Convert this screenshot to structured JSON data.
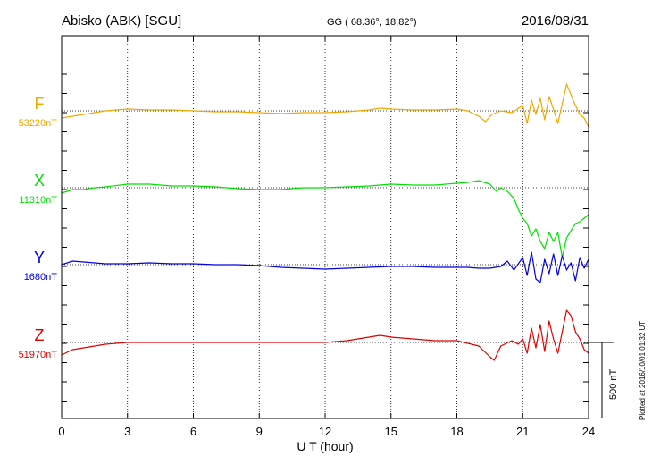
{
  "header": {
    "title": "Abisko (ABK)  [SGU]",
    "coords": "GG ( 68.36°,  18.82°)",
    "date": "2016/08/31"
  },
  "footer": {
    "plotted": "Plotted at 2016/10/01 01:32 UT"
  },
  "chart_data": {
    "type": "line",
    "title": "Abisko (ABK)  [SGU]",
    "xlabel": "U T (hour)",
    "ylabel": "",
    "xlim": [
      0,
      24
    ],
    "xticks": [
      "0",
      "3",
      "6",
      "9",
      "12",
      "15",
      "18",
      "21",
      "24"
    ],
    "grid": "dotted vertical lines every 3 h; dotted baseline per series",
    "scale_bar": "500 nT",
    "series_spacing_nT": 430,
    "series": [
      {
        "name": "F",
        "baseline": "53220nT",
        "color": "#f0a800",
        "x": [
          0,
          0.5,
          1,
          1.5,
          2,
          3,
          4,
          5,
          6,
          7,
          8,
          9,
          10,
          11,
          12,
          13,
          14,
          14.5,
          15,
          16,
          17,
          18,
          18.5,
          19,
          19.3,
          19.6,
          20,
          20.5,
          21,
          21.2,
          21.4,
          21.6,
          21.8,
          22,
          22.2,
          22.4,
          22.6,
          22.8,
          23,
          23.2,
          23.4,
          23.6,
          23.8,
          24
        ],
        "values": [
          -40,
          -30,
          -20,
          -10,
          0,
          10,
          5,
          5,
          0,
          -5,
          -5,
          -10,
          -15,
          -10,
          -10,
          -5,
          5,
          15,
          10,
          5,
          5,
          10,
          0,
          -30,
          -60,
          -20,
          0,
          -10,
          30,
          -70,
          60,
          -20,
          70,
          -50,
          80,
          10,
          -70,
          40,
          150,
          90,
          30,
          -20,
          -40,
          -90
        ]
      },
      {
        "name": "X",
        "baseline": "11310nT",
        "color": "#00e000",
        "x": [
          0,
          0.5,
          1,
          1.5,
          2,
          3,
          4,
          5,
          6,
          7,
          8,
          9,
          10,
          11,
          12,
          13,
          14,
          15,
          16,
          17,
          18,
          18.5,
          19,
          19.5,
          19.8,
          20,
          20.3,
          20.6,
          20.8,
          21,
          21.2,
          21.4,
          21.6,
          21.8,
          22,
          22.2,
          22.4,
          22.6,
          22.8,
          23,
          23.2,
          23.4,
          23.6,
          23.8,
          24
        ],
        "values": [
          -30,
          -10,
          -10,
          0,
          5,
          20,
          20,
          10,
          10,
          5,
          -5,
          -10,
          -10,
          0,
          0,
          5,
          10,
          20,
          15,
          15,
          25,
          30,
          40,
          20,
          -20,
          0,
          -20,
          -60,
          -120,
          -170,
          -200,
          -270,
          -230,
          -300,
          -340,
          -250,
          -300,
          -250,
          -390,
          -280,
          -240,
          -200,
          -190,
          -170,
          -150
        ]
      },
      {
        "name": "Y",
        "baseline": "1680nT",
        "color": "#0000e0",
        "x": [
          0,
          0.5,
          1,
          1.5,
          2,
          3,
          4,
          5,
          6,
          7,
          8,
          9,
          10,
          11,
          12,
          13,
          14,
          15,
          16,
          17,
          18,
          18.5,
          19,
          19.5,
          20,
          20.3,
          20.6,
          21,
          21.2,
          21.4,
          21.6,
          21.8,
          22,
          22.2,
          22.4,
          22.6,
          22.8,
          23,
          23.2,
          23.4,
          23.6,
          23.8,
          24
        ],
        "values": [
          0,
          20,
          15,
          10,
          5,
          5,
          10,
          5,
          5,
          0,
          0,
          -5,
          -15,
          -20,
          -25,
          -20,
          -15,
          -10,
          -10,
          -15,
          -15,
          -15,
          -20,
          -20,
          -10,
          20,
          -30,
          40,
          -60,
          70,
          -80,
          -100,
          30,
          -50,
          60,
          -60,
          50,
          -30,
          10,
          -90,
          40,
          -20,
          30
        ]
      },
      {
        "name": "Z",
        "baseline": "51970nT",
        "color": "#e00000",
        "x": [
          0,
          0.5,
          1,
          1.5,
          2,
          3,
          4,
          5,
          6,
          7,
          8,
          9,
          10,
          11,
          12,
          13,
          14,
          14.5,
          15,
          16,
          17,
          18,
          19,
          19.5,
          19.7,
          20,
          20.5,
          20.8,
          21,
          21.2,
          21.4,
          21.6,
          21.8,
          22,
          22.2,
          22.4,
          22.6,
          22.8,
          23,
          23.2,
          23.4,
          23.6,
          23.8,
          24
        ],
        "values": [
          -70,
          -40,
          -30,
          -20,
          -10,
          0,
          0,
          0,
          0,
          0,
          0,
          0,
          0,
          0,
          0,
          10,
          30,
          40,
          30,
          20,
          10,
          10,
          -20,
          -80,
          -100,
          -20,
          10,
          -10,
          20,
          -60,
          80,
          -30,
          100,
          -50,
          120,
          20,
          -60,
          60,
          180,
          150,
          60,
          20,
          -40,
          -60
        ]
      }
    ]
  }
}
